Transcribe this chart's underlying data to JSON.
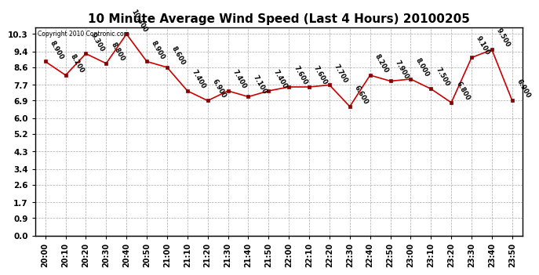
{
  "title": "10 Minute Average Wind Speed (Last 4 Hours) 20100205",
  "copyright_text": "Copyright 2010 Contronic.com",
  "x_labels": [
    "20:00",
    "20:10",
    "20:20",
    "20:30",
    "20:40",
    "20:50",
    "21:00",
    "21:10",
    "21:20",
    "21:30",
    "21:40",
    "21:50",
    "22:00",
    "22:10",
    "22:20",
    "22:30",
    "22:40",
    "22:50",
    "23:00",
    "23:10",
    "23:20",
    "23:30",
    "23:40",
    "23:50"
  ],
  "y_values": [
    8.9,
    8.2,
    9.3,
    8.8,
    10.3,
    8.9,
    8.6,
    7.4,
    6.9,
    7.4,
    7.1,
    7.4,
    7.6,
    7.6,
    7.7,
    6.6,
    8.2,
    7.9,
    8.0,
    7.5,
    6.8,
    9.1,
    9.5,
    6.9
  ],
  "y_ticks": [
    0.0,
    0.9,
    1.7,
    2.6,
    3.4,
    4.3,
    5.2,
    6.0,
    6.9,
    7.7,
    8.6,
    9.4,
    10.3
  ],
  "ylim": [
    0.0,
    10.65
  ],
  "line_color": "#cc0000",
  "marker_color": "#880000",
  "bg_color": "white",
  "grid_color": "#aaaaaa",
  "title_fontsize": 11,
  "annotation_fontsize": 6.0,
  "annotation_rotation": -60
}
